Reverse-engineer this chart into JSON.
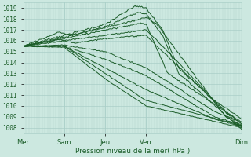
{
  "xlabel": "Pression niveau de la mer( hPa )",
  "ylim": [
    1007.5,
    1019.5
  ],
  "yticks": [
    1008,
    1009,
    1010,
    1011,
    1012,
    1013,
    1014,
    1015,
    1016,
    1017,
    1018,
    1019
  ],
  "xtick_labels": [
    "Mer",
    "Sam",
    "Jeu",
    "Ven",
    "Dim"
  ],
  "xtick_positions": [
    0,
    0.75,
    1.5,
    2.25,
    4.0
  ],
  "background_color": "#cce8e0",
  "grid_color": "#aacfc8",
  "line_color": "#1a5c28",
  "text_color": "#1a5c28",
  "xlabel_fontsize": 6.5,
  "tick_fontsize": 5.5
}
